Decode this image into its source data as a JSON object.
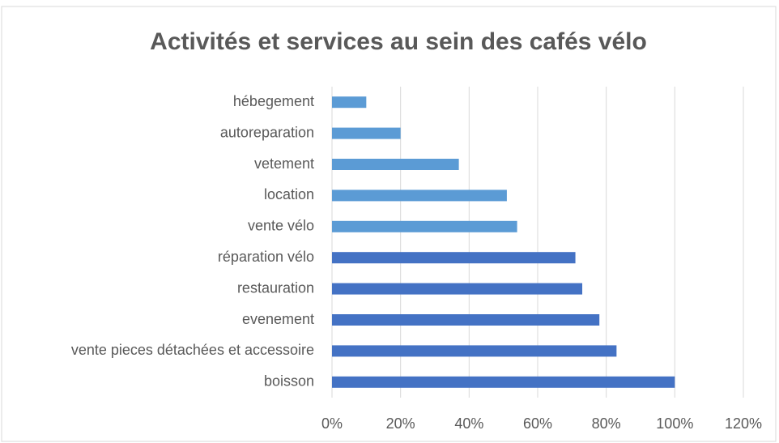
{
  "chart_data": {
    "type": "bar",
    "orientation": "horizontal",
    "title": "Activités et services au sein des cafés vélo",
    "categories": [
      "hébegement",
      "autoreparation",
      "vetement",
      "location",
      "vente vélo",
      "réparation vélo",
      "restauration",
      "evenement",
      "vente pieces détachées et accessoire",
      "boisson"
    ],
    "values": [
      10,
      20,
      37,
      51,
      54,
      71,
      73,
      78,
      83,
      100
    ],
    "colors": [
      "#5b9bd5",
      "#5b9bd5",
      "#5b9bd5",
      "#5b9bd5",
      "#5b9bd5",
      "#4472c4",
      "#4472c4",
      "#4472c4",
      "#4472c4",
      "#4472c4"
    ],
    "xlim": [
      0,
      120
    ],
    "xticks": [
      {
        "value": 0,
        "label": "0%"
      },
      {
        "value": 20,
        "label": "20%"
      },
      {
        "value": 40,
        "label": "40%"
      },
      {
        "value": 60,
        "label": "60%"
      },
      {
        "value": 80,
        "label": "80%"
      },
      {
        "value": 100,
        "label": "100%"
      },
      {
        "value": 120,
        "label": "120%"
      }
    ],
    "grid": true
  }
}
